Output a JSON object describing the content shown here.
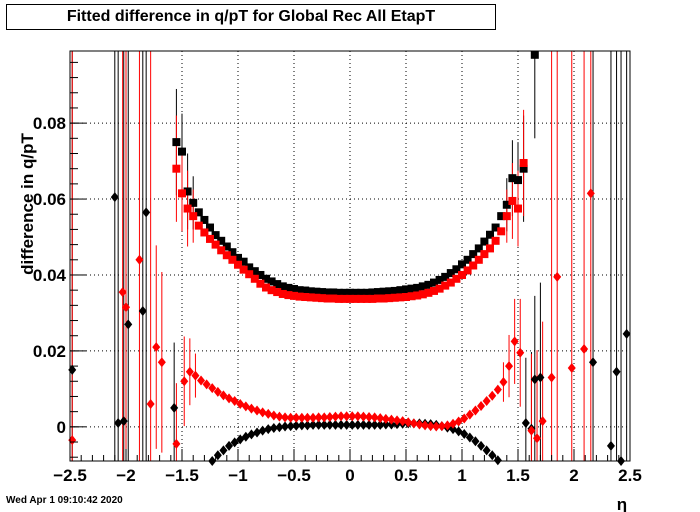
{
  "title": "Fitted difference in q/pT for Global Rec All EtapT",
  "timestamp": "Wed Apr  1 09:10:42 2020",
  "colors": {
    "series_black": "#000000",
    "series_red": "#ff0000",
    "grid": "#000000",
    "background": "#ffffff"
  },
  "chart_data": {
    "type": "scatter",
    "xlabel": "η",
    "ylabel": "difference in q/pT",
    "xlim": [
      -2.5,
      2.5
    ],
    "ylim": [
      -0.009,
      0.099
    ],
    "grid": true,
    "x_ticks": [
      -2.5,
      -2,
      -1.5,
      -1,
      -0.5,
      0,
      0.5,
      1,
      1.5,
      2,
      2.5
    ],
    "x_tick_labels": [
      "−2.5",
      "−2",
      "−1.5",
      "−1",
      "−0.5",
      "0",
      "0.5",
      "1",
      "1.5",
      "2",
      "2.5"
    ],
    "y_ticks": [
      0,
      0.02,
      0.04,
      0.06,
      0.08
    ],
    "y_tick_labels": [
      "0",
      "0.02",
      "0.04",
      "0.06",
      "0.08"
    ],
    "series": [
      {
        "color": "#000000",
        "marker": "square",
        "points": [
          [
            -1.55,
            0.075
          ],
          [
            -1.5,
            0.0725
          ],
          [
            -1.45,
            0.062
          ],
          [
            -1.4,
            0.059
          ],
          [
            -1.35,
            0.0565
          ],
          [
            -1.3,
            0.0545
          ],
          [
            -1.25,
            0.0525
          ],
          [
            -1.2,
            0.0505
          ],
          [
            -1.15,
            0.049
          ],
          [
            -1.1,
            0.0475
          ],
          [
            -1.05,
            0.046
          ],
          [
            -1.0,
            0.0445
          ],
          [
            -0.95,
            0.0435
          ],
          [
            -0.9,
            0.042
          ],
          [
            -0.85,
            0.041
          ],
          [
            -0.8,
            0.04
          ],
          [
            -0.75,
            0.039
          ],
          [
            -0.7,
            0.0383
          ],
          [
            -0.65,
            0.0376
          ],
          [
            -0.6,
            0.037
          ],
          [
            -0.55,
            0.0366
          ],
          [
            -0.5,
            0.0363
          ],
          [
            -0.45,
            0.036
          ],
          [
            -0.4,
            0.0359
          ],
          [
            -0.35,
            0.0357
          ],
          [
            -0.3,
            0.0356
          ],
          [
            -0.25,
            0.0355
          ],
          [
            -0.2,
            0.0354
          ],
          [
            -0.15,
            0.0354
          ],
          [
            -0.1,
            0.0353
          ],
          [
            -0.05,
            0.0353
          ],
          [
            0.0,
            0.0353
          ],
          [
            0.05,
            0.0353
          ],
          [
            0.1,
            0.0353
          ],
          [
            0.15,
            0.0353
          ],
          [
            0.2,
            0.0354
          ],
          [
            0.25,
            0.0355
          ],
          [
            0.3,
            0.0356
          ],
          [
            0.35,
            0.0357
          ],
          [
            0.4,
            0.0358
          ],
          [
            0.45,
            0.036
          ],
          [
            0.5,
            0.0362
          ],
          [
            0.55,
            0.0364
          ],
          [
            0.6,
            0.0366
          ],
          [
            0.65,
            0.037
          ],
          [
            0.7,
            0.0374
          ],
          [
            0.75,
            0.038
          ],
          [
            0.8,
            0.0387
          ],
          [
            0.85,
            0.0395
          ],
          [
            0.9,
            0.0405
          ],
          [
            0.95,
            0.0415
          ],
          [
            1.0,
            0.0428
          ],
          [
            1.05,
            0.044
          ],
          [
            1.1,
            0.0455
          ],
          [
            1.15,
            0.047
          ],
          [
            1.2,
            0.0488
          ],
          [
            1.25,
            0.0506
          ],
          [
            1.3,
            0.0525
          ],
          [
            1.35,
            0.0555
          ],
          [
            1.4,
            0.0585
          ],
          [
            1.45,
            0.0655
          ],
          [
            1.5,
            0.065
          ],
          [
            1.55,
            0.068
          ],
          [
            1.65,
            0.098
          ]
        ]
      },
      {
        "color": "#ff0000",
        "marker": "square",
        "points": [
          [
            -1.55,
            0.068
          ],
          [
            -1.5,
            0.0615
          ],
          [
            -1.45,
            0.0575
          ],
          [
            -1.4,
            0.0555
          ],
          [
            -1.35,
            0.053
          ],
          [
            -1.3,
            0.0512
          ],
          [
            -1.25,
            0.0495
          ],
          [
            -1.2,
            0.048
          ],
          [
            -1.15,
            0.0465
          ],
          [
            -1.1,
            0.0452
          ],
          [
            -1.05,
            0.044
          ],
          [
            -1.0,
            0.0427
          ],
          [
            -0.95,
            0.0414
          ],
          [
            -0.9,
            0.0402
          ],
          [
            -0.85,
            0.039
          ],
          [
            -0.8,
            0.0377
          ],
          [
            -0.75,
            0.0367
          ],
          [
            -0.7,
            0.036
          ],
          [
            -0.65,
            0.0355
          ],
          [
            -0.6,
            0.035
          ],
          [
            -0.55,
            0.0347
          ],
          [
            -0.5,
            0.0345
          ],
          [
            -0.45,
            0.0343
          ],
          [
            -0.4,
            0.0342
          ],
          [
            -0.35,
            0.0341
          ],
          [
            -0.3,
            0.034
          ],
          [
            -0.25,
            0.0339
          ],
          [
            -0.2,
            0.0338
          ],
          [
            -0.15,
            0.0338
          ],
          [
            -0.1,
            0.0337
          ],
          [
            -0.05,
            0.0337
          ],
          [
            0.0,
            0.0337
          ],
          [
            0.05,
            0.0337
          ],
          [
            0.1,
            0.0337
          ],
          [
            0.15,
            0.0337
          ],
          [
            0.2,
            0.0337
          ],
          [
            0.25,
            0.0338
          ],
          [
            0.3,
            0.0338
          ],
          [
            0.35,
            0.0339
          ],
          [
            0.4,
            0.034
          ],
          [
            0.45,
            0.0341
          ],
          [
            0.5,
            0.0342
          ],
          [
            0.55,
            0.0344
          ],
          [
            0.6,
            0.0346
          ],
          [
            0.65,
            0.0349
          ],
          [
            0.7,
            0.0353
          ],
          [
            0.75,
            0.0358
          ],
          [
            0.8,
            0.0364
          ],
          [
            0.85,
            0.0372
          ],
          [
            0.9,
            0.038
          ],
          [
            0.95,
            0.039
          ],
          [
            1.0,
            0.04
          ],
          [
            1.05,
            0.0412
          ],
          [
            1.1,
            0.0425
          ],
          [
            1.15,
            0.044
          ],
          [
            1.2,
            0.0455
          ],
          [
            1.25,
            0.047
          ],
          [
            1.3,
            0.049
          ],
          [
            1.35,
            0.0515
          ],
          [
            1.4,
            0.0555
          ],
          [
            1.45,
            0.0595
          ],
          [
            1.5,
            0.0575
          ],
          [
            1.55,
            0.0695
          ]
        ]
      },
      {
        "color": "#000000",
        "marker": "diamond",
        "points": [
          [
            -2.48,
            0.015
          ],
          [
            -2.1,
            0.0605
          ],
          [
            -2.07,
            0.001
          ],
          [
            -2.02,
            0.0015
          ],
          [
            -1.98,
            0.027
          ],
          [
            -1.85,
            0.0305
          ],
          [
            -1.82,
            0.0565
          ],
          [
            -1.57,
            0.005
          ],
          [
            -1.23,
            -0.009
          ],
          [
            -1.18,
            -0.0075
          ],
          [
            -1.13,
            -0.0062
          ],
          [
            -1.08,
            -0.005
          ],
          [
            -1.03,
            -0.0041
          ],
          [
            -0.98,
            -0.0033
          ],
          [
            -0.93,
            -0.0026
          ],
          [
            -0.88,
            -0.002
          ],
          [
            -0.83,
            -0.0015
          ],
          [
            -0.78,
            -0.001
          ],
          [
            -0.73,
            -0.0006
          ],
          [
            -0.68,
            -0.0003
          ],
          [
            -0.63,
            -0.0001
          ],
          [
            -0.58,
            0.0001
          ],
          [
            -0.53,
            0.0002
          ],
          [
            -0.48,
            0.0003
          ],
          [
            -0.43,
            0.0004
          ],
          [
            -0.38,
            0.0004
          ],
          [
            -0.33,
            0.0005
          ],
          [
            -0.28,
            0.0005
          ],
          [
            -0.23,
            0.0005
          ],
          [
            -0.18,
            0.0005
          ],
          [
            -0.13,
            0.0005
          ],
          [
            -0.08,
            0.0005
          ],
          [
            -0.03,
            0.0005
          ],
          [
            0.02,
            0.0005
          ],
          [
            0.07,
            0.0005
          ],
          [
            0.12,
            0.0005
          ],
          [
            0.17,
            0.0005
          ],
          [
            0.22,
            0.0005
          ],
          [
            0.27,
            0.0005
          ],
          [
            0.32,
            0.0006
          ],
          [
            0.37,
            0.0006
          ],
          [
            0.42,
            0.0007
          ],
          [
            0.47,
            0.0008
          ],
          [
            0.52,
            0.0009
          ],
          [
            0.57,
            0.0009
          ],
          [
            0.62,
            0.0009
          ],
          [
            0.67,
            0.0008
          ],
          [
            0.72,
            0.0007
          ],
          [
            0.77,
            0.0005
          ],
          [
            0.82,
            0.0002
          ],
          [
            0.87,
            -0.0002
          ],
          [
            0.92,
            -0.0006
          ],
          [
            0.97,
            -0.0012
          ],
          [
            1.02,
            -0.0019
          ],
          [
            1.07,
            -0.0028
          ],
          [
            1.12,
            -0.0038
          ],
          [
            1.17,
            -0.005
          ],
          [
            1.22,
            -0.0062
          ],
          [
            1.27,
            -0.0075
          ],
          [
            1.32,
            -0.0088
          ],
          [
            1.57,
            0.001
          ],
          [
            1.62,
            -0.0005
          ],
          [
            1.65,
            0.0125
          ],
          [
            1.7,
            0.013
          ],
          [
            2.17,
            0.017
          ],
          [
            2.33,
            -0.005
          ],
          [
            2.38,
            0.0145
          ],
          [
            2.42,
            -0.009
          ],
          [
            2.47,
            0.0245
          ]
        ]
      },
      {
        "color": "#ff0000",
        "marker": "diamond",
        "points": [
          [
            -2.48,
            -0.0035
          ],
          [
            -2.03,
            0.0355
          ],
          [
            -2.0,
            0.0315
          ],
          [
            -1.88,
            0.044
          ],
          [
            -1.78,
            0.006
          ],
          [
            -1.73,
            0.021
          ],
          [
            -1.68,
            0.017
          ],
          [
            -1.55,
            -0.0045
          ],
          [
            -1.48,
            0.012
          ],
          [
            -1.43,
            0.0145
          ],
          [
            -1.38,
            0.0135
          ],
          [
            -1.33,
            0.0122
          ],
          [
            -1.28,
            0.0112
          ],
          [
            -1.23,
            0.0102
          ],
          [
            -1.18,
            0.0092
          ],
          [
            -1.13,
            0.0083
          ],
          [
            -1.08,
            0.0075
          ],
          [
            -1.03,
            0.0068
          ],
          [
            -0.98,
            0.006
          ],
          [
            -0.93,
            0.0054
          ],
          [
            -0.88,
            0.0048
          ],
          [
            -0.83,
            0.0043
          ],
          [
            -0.78,
            0.0038
          ],
          [
            -0.73,
            0.0034
          ],
          [
            -0.68,
            0.003
          ],
          [
            -0.63,
            0.0027
          ],
          [
            -0.58,
            0.0025
          ],
          [
            -0.53,
            0.0024
          ],
          [
            -0.48,
            0.0024
          ],
          [
            -0.43,
            0.0024
          ],
          [
            -0.38,
            0.0024
          ],
          [
            -0.33,
            0.0024
          ],
          [
            -0.28,
            0.0025
          ],
          [
            -0.23,
            0.0025
          ],
          [
            -0.18,
            0.0026
          ],
          [
            -0.13,
            0.0027
          ],
          [
            -0.08,
            0.0028
          ],
          [
            -0.03,
            0.0028
          ],
          [
            0.02,
            0.0028
          ],
          [
            0.07,
            0.0028
          ],
          [
            0.12,
            0.0027
          ],
          [
            0.17,
            0.0026
          ],
          [
            0.22,
            0.0025
          ],
          [
            0.27,
            0.0023
          ],
          [
            0.32,
            0.0021
          ],
          [
            0.37,
            0.0019
          ],
          [
            0.42,
            0.0017
          ],
          [
            0.47,
            0.0015
          ],
          [
            0.52,
            0.0012
          ],
          [
            0.57,
            0.0009
          ],
          [
            0.62,
            0.0006
          ],
          [
            0.67,
            0.0004
          ],
          [
            0.72,
            0.0002
          ],
          [
            0.77,
            0.0001
          ],
          [
            0.82,
            0.0002
          ],
          [
            0.87,
            0.0004
          ],
          [
            0.92,
            0.0008
          ],
          [
            0.97,
            0.0014
          ],
          [
            1.02,
            0.0022
          ],
          [
            1.07,
            0.0032
          ],
          [
            1.12,
            0.0043
          ],
          [
            1.17,
            0.0055
          ],
          [
            1.22,
            0.0068
          ],
          [
            1.27,
            0.0082
          ],
          [
            1.32,
            0.0098
          ],
          [
            1.37,
            0.0118
          ],
          [
            1.42,
            0.016
          ],
          [
            1.47,
            0.0225
          ],
          [
            1.52,
            0.0195
          ],
          [
            1.62,
            -0.001
          ],
          [
            1.67,
            -0.003
          ],
          [
            1.72,
            0.0015
          ],
          [
            1.8,
            0.013
          ],
          [
            1.85,
            0.0395
          ],
          [
            1.98,
            0.0155
          ],
          [
            2.09,
            0.0205
          ],
          [
            2.15,
            0.0615
          ]
        ]
      }
    ]
  }
}
